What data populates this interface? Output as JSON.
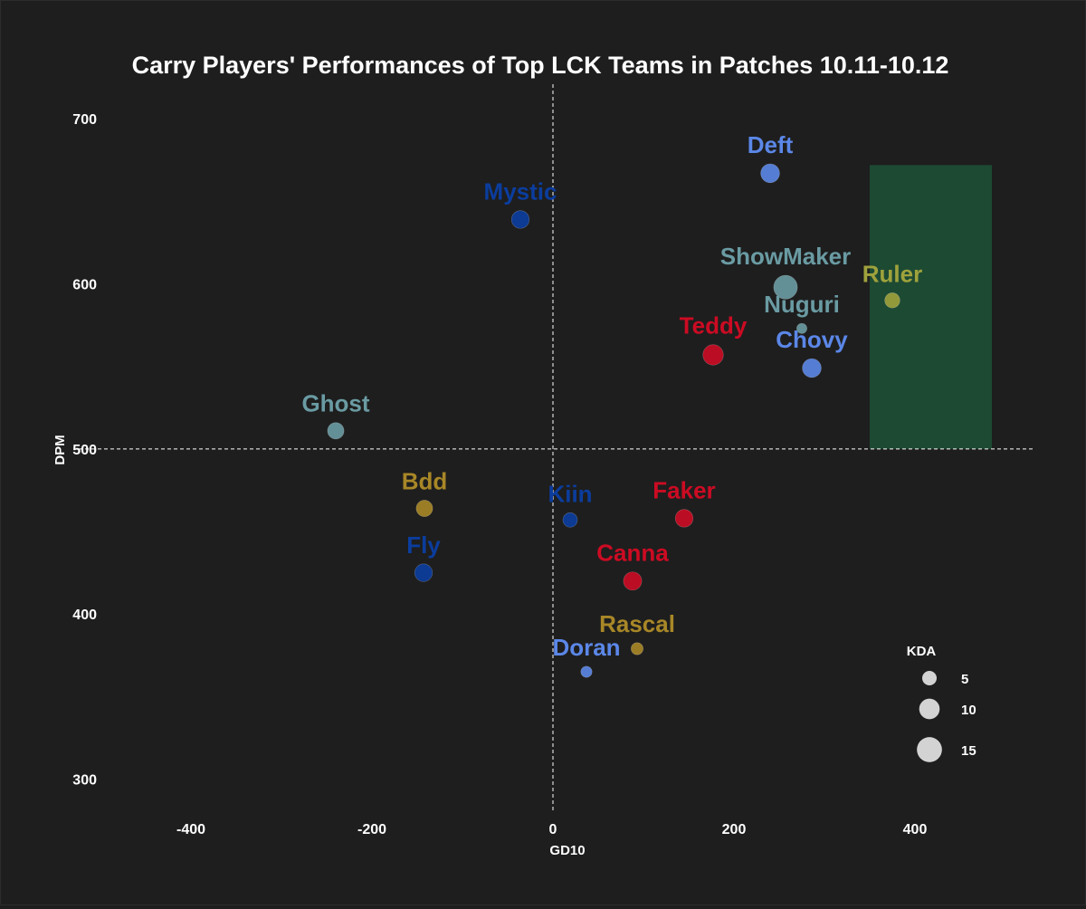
{
  "chart_data": {
    "type": "scatter",
    "title": "Carry Players' Performances of Top LCK Teams in Patches 10.11-10.12",
    "xlabel": "GD10",
    "ylabel": "DPM",
    "xlim": [
      -500,
      530
    ],
    "ylim": [
      280,
      710
    ],
    "x_ticks": [
      -400,
      -200,
      0,
      200,
      400
    ],
    "y_ticks": [
      300,
      400,
      500,
      600,
      700
    ],
    "reference_lines": {
      "x": 0,
      "y": 500,
      "style": "dashed"
    },
    "highlight_region": {
      "x": [
        350,
        485
      ],
      "y": [
        500,
        672
      ],
      "color": "#1d4a33"
    },
    "grid": false,
    "legend": {
      "title": "KDA",
      "placement": "bottom-right",
      "entries": [
        {
          "label": "5",
          "value": 5
        },
        {
          "label": "10",
          "value": 10
        },
        {
          "label": "15",
          "value": 15
        }
      ]
    },
    "points": [
      {
        "name": "Deft",
        "x": 240,
        "y": 667,
        "kda": 8.5,
        "color": "#5b87e8"
      },
      {
        "name": "Mystic",
        "x": -36,
        "y": 639,
        "kda": 7.5,
        "color": "#0b3d9e"
      },
      {
        "name": "ShowMaker",
        "x": 257,
        "y": 598,
        "kda": 13.5,
        "color": "#6a9ba3"
      },
      {
        "name": "Ruler",
        "x": 375,
        "y": 590,
        "kda": 5.5,
        "color": "#9fa23c"
      },
      {
        "name": "Nuguri",
        "x": 275,
        "y": 573,
        "kda": 2.5,
        "color": "#6a9ba3"
      },
      {
        "name": "Teddy",
        "x": 177,
        "y": 557,
        "kda": 10,
        "color": "#cc0b23"
      },
      {
        "name": "Chovy",
        "x": 286,
        "y": 549,
        "kda": 8.5,
        "color": "#5b87e8"
      },
      {
        "name": "Ghost",
        "x": -240,
        "y": 511,
        "kda": 6.5,
        "color": "#6a9ba3"
      },
      {
        "name": "Bdd",
        "x": -142,
        "y": 464,
        "kda": 6.5,
        "color": "#a88727"
      },
      {
        "name": "Kiin",
        "x": 19,
        "y": 457,
        "kda": 5,
        "color": "#0b3d9e"
      },
      {
        "name": "Faker",
        "x": 145,
        "y": 458,
        "kda": 7.5,
        "color": "#cc0b23"
      },
      {
        "name": "Fly",
        "x": -143,
        "y": 425,
        "kda": 7.5,
        "color": "#0b3d9e"
      },
      {
        "name": "Canna",
        "x": 88,
        "y": 420,
        "kda": 8,
        "color": "#cc0b23"
      },
      {
        "name": "Rascal",
        "x": 93,
        "y": 379,
        "kda": 3.5,
        "color": "#a88727"
      },
      {
        "name": "Doran",
        "x": 37,
        "y": 365,
        "kda": 3,
        "color": "#5b87e8"
      }
    ]
  }
}
